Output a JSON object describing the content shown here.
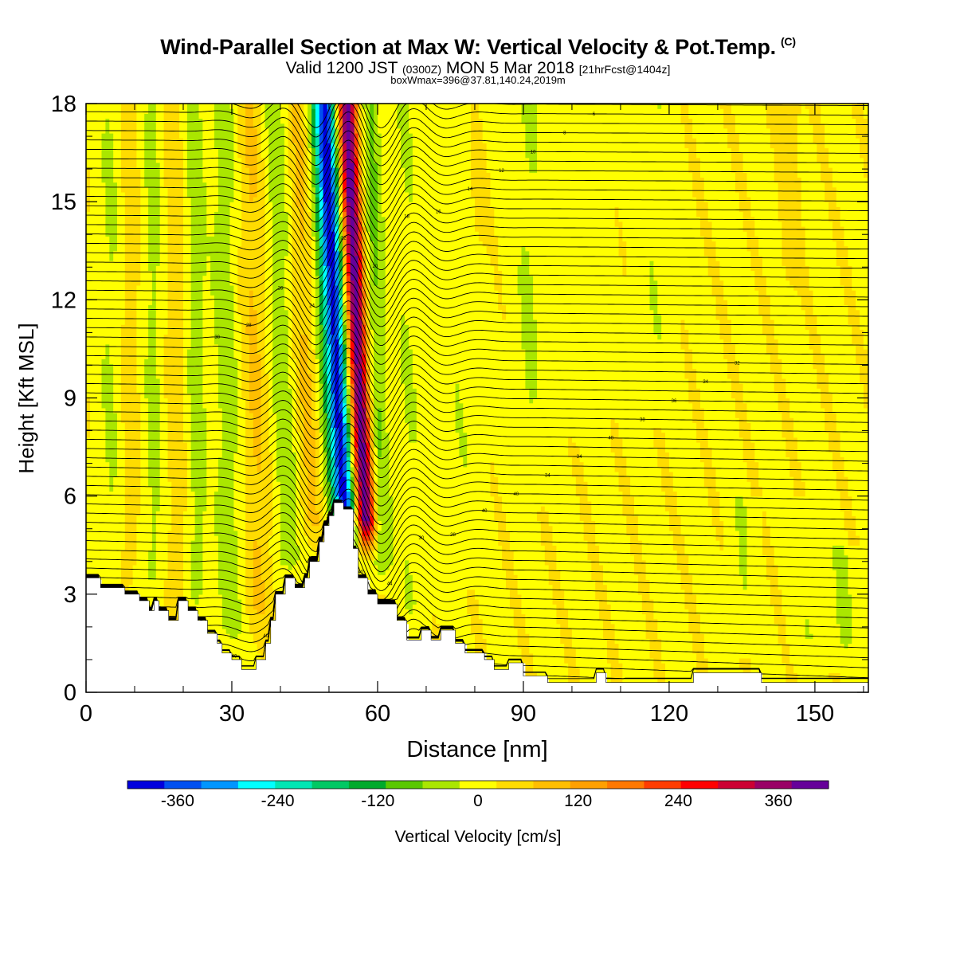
{
  "title": "Wind-Parallel Section at Max W: Vertical Velocity & Pot.Temp.",
  "title_mark": "(C)",
  "subtitle": {
    "part1": "Valid 1200 JST",
    "part2": "(0300Z)",
    "part3": "MON 5 Mar 2018",
    "part4": "[21hrFcst@1404z]"
  },
  "subtitle2": "boxWmax=396@37.81,140.24,2019m",
  "chart_data": {
    "type": "heatmap",
    "xlabel": "Distance [nm]",
    "ylabel": "Height [Kft MSL]",
    "xlim": [
      0,
      161
    ],
    "ylim": [
      0,
      18
    ],
    "x_ticks": [
      0,
      30,
      60,
      90,
      120,
      150
    ],
    "y_ticks": [
      0,
      3,
      6,
      9,
      12,
      15,
      18
    ],
    "colorbar": {
      "label": "Vertical Velocity [cm/s]",
      "ticks": [
        -360,
        -240,
        -120,
        0,
        120,
        240,
        360
      ],
      "range": [
        -420,
        420
      ],
      "colors": [
        "#0000dd",
        "#0050f0",
        "#0096ff",
        "#00ffff",
        "#00e6b4",
        "#00c864",
        "#00aa2c",
        "#5ac800",
        "#aae600",
        "#ffff00",
        "#ffdc00",
        "#ffbe00",
        "#ffa000",
        "#ff7800",
        "#ff3c00",
        "#ff0000",
        "#cc0033",
        "#990066",
        "#660099"
      ]
    },
    "terrain_kft": [
      {
        "x": 0,
        "h": 3.5
      },
      {
        "x": 3,
        "h": 3.5
      },
      {
        "x": 3,
        "h": 3.2
      },
      {
        "x": 8,
        "h": 3.2
      },
      {
        "x": 8,
        "h": 3.0
      },
      {
        "x": 11,
        "h": 3.0
      },
      {
        "x": 11,
        "h": 2.8
      },
      {
        "x": 13,
        "h": 2.8
      },
      {
        "x": 13,
        "h": 2.5
      },
      {
        "x": 14,
        "h": 2.5
      },
      {
        "x": 14,
        "h": 2.8
      },
      {
        "x": 15,
        "h": 2.8
      },
      {
        "x": 15,
        "h": 2.5
      },
      {
        "x": 17,
        "h": 2.5
      },
      {
        "x": 17,
        "h": 2.2
      },
      {
        "x": 19,
        "h": 2.2
      },
      {
        "x": 19,
        "h": 2.8
      },
      {
        "x": 21,
        "h": 2.8
      },
      {
        "x": 21,
        "h": 2.5
      },
      {
        "x": 23,
        "h": 2.5
      },
      {
        "x": 23,
        "h": 2.2
      },
      {
        "x": 25,
        "h": 2.2
      },
      {
        "x": 25,
        "h": 1.8
      },
      {
        "x": 27,
        "h": 1.8
      },
      {
        "x": 27,
        "h": 1.5
      },
      {
        "x": 28,
        "h": 1.5
      },
      {
        "x": 28,
        "h": 1.2
      },
      {
        "x": 30,
        "h": 1.2
      },
      {
        "x": 30,
        "h": 1.0
      },
      {
        "x": 32,
        "h": 1.0
      },
      {
        "x": 32,
        "h": 0.7
      },
      {
        "x": 35,
        "h": 0.7
      },
      {
        "x": 35,
        "h": 1.0
      },
      {
        "x": 37,
        "h": 1.0
      },
      {
        "x": 37,
        "h": 1.5
      },
      {
        "x": 38,
        "h": 1.5
      },
      {
        "x": 38,
        "h": 2.2
      },
      {
        "x": 39,
        "h": 2.2
      },
      {
        "x": 39,
        "h": 3.0
      },
      {
        "x": 41,
        "h": 3.0
      },
      {
        "x": 41,
        "h": 3.5
      },
      {
        "x": 43,
        "h": 3.5
      },
      {
        "x": 43,
        "h": 3.2
      },
      {
        "x": 45,
        "h": 3.2
      },
      {
        "x": 45,
        "h": 3.5
      },
      {
        "x": 46,
        "h": 3.5
      },
      {
        "x": 46,
        "h": 4.0
      },
      {
        "x": 48,
        "h": 4.0
      },
      {
        "x": 48,
        "h": 4.6
      },
      {
        "x": 49,
        "h": 4.6
      },
      {
        "x": 49,
        "h": 5.1
      },
      {
        "x": 50,
        "h": 5.1
      },
      {
        "x": 50,
        "h": 5.4
      },
      {
        "x": 51,
        "h": 5.4
      },
      {
        "x": 51,
        "h": 5.8
      },
      {
        "x": 53,
        "h": 5.8
      },
      {
        "x": 53,
        "h": 5.6
      },
      {
        "x": 55,
        "h": 5.6
      },
      {
        "x": 55,
        "h": 4.4
      },
      {
        "x": 56,
        "h": 4.4
      },
      {
        "x": 56,
        "h": 3.5
      },
      {
        "x": 58,
        "h": 3.5
      },
      {
        "x": 58,
        "h": 3.0
      },
      {
        "x": 60,
        "h": 3.0
      },
      {
        "x": 60,
        "h": 2.7
      },
      {
        "x": 64,
        "h": 2.7
      },
      {
        "x": 64,
        "h": 2.2
      },
      {
        "x": 66,
        "h": 2.2
      },
      {
        "x": 66,
        "h": 1.6
      },
      {
        "x": 69,
        "h": 1.6
      },
      {
        "x": 69,
        "h": 1.9
      },
      {
        "x": 71,
        "h": 1.9
      },
      {
        "x": 71,
        "h": 1.6
      },
      {
        "x": 73,
        "h": 1.6
      },
      {
        "x": 73,
        "h": 1.9
      },
      {
        "x": 76,
        "h": 1.9
      },
      {
        "x": 76,
        "h": 1.5
      },
      {
        "x": 78,
        "h": 1.5
      },
      {
        "x": 78,
        "h": 1.2
      },
      {
        "x": 82,
        "h": 1.2
      },
      {
        "x": 82,
        "h": 1.0
      },
      {
        "x": 84,
        "h": 1.0
      },
      {
        "x": 84,
        "h": 0.7
      },
      {
        "x": 87,
        "h": 0.7
      },
      {
        "x": 87,
        "h": 0.9
      },
      {
        "x": 90,
        "h": 0.9
      },
      {
        "x": 90,
        "h": 0.5
      },
      {
        "x": 95,
        "h": 0.5
      },
      {
        "x": 95,
        "h": 0.3
      },
      {
        "x": 105,
        "h": 0.3
      },
      {
        "x": 105,
        "h": 0.6
      },
      {
        "x": 107,
        "h": 0.6
      },
      {
        "x": 107,
        "h": 0.3
      },
      {
        "x": 125,
        "h": 0.3
      },
      {
        "x": 125,
        "h": 0.6
      },
      {
        "x": 139,
        "h": 0.6
      },
      {
        "x": 139,
        "h": 0.3
      },
      {
        "x": 161,
        "h": 0.3
      }
    ],
    "w_features": [
      {
        "x": 54,
        "w": -380,
        "w_nm": 2.2,
        "z0": 3.8,
        "z1": 18,
        "tilt": -0.42
      },
      {
        "x": 58,
        "w": 396,
        "w_nm": 2.0,
        "z0": 4.0,
        "z1": 18,
        "tilt": -0.38
      },
      {
        "x": 51,
        "w": -80,
        "w_nm": 2.5,
        "z0": 4.5,
        "z1": 18,
        "tilt": -0.35
      },
      {
        "x": 61,
        "w": -90,
        "w_nm": 2.0,
        "z0": 3.0,
        "z1": 18,
        "tilt": -0.2
      },
      {
        "x": 47,
        "w": 70,
        "w_nm": 3.0,
        "z0": 4.0,
        "z1": 18,
        "tilt": -0.3
      },
      {
        "x": 42,
        "w": -70,
        "w_nm": 3.0,
        "z0": 3.0,
        "z1": 18,
        "tilt": -0.25
      },
      {
        "x": 36,
        "w": 60,
        "w_nm": 3.0,
        "z0": 1.5,
        "z1": 18,
        "tilt": -0.18
      },
      {
        "x": 30,
        "w": -60,
        "w_nm": 3.0,
        "z0": 1.0,
        "z1": 18,
        "tilt": -0.12
      },
      {
        "x": 23,
        "w": -55,
        "w_nm": 2.2,
        "z0": 2.0,
        "z1": 18,
        "tilt": -0.05
      },
      {
        "x": 19,
        "w": 35,
        "w_nm": 2.0,
        "z0": 2.0,
        "z1": 18,
        "tilt": -0.05
      },
      {
        "x": 14,
        "w": -50,
        "w_nm": 2.0,
        "z0": 2.5,
        "z1": 18,
        "tilt": -0.03
      },
      {
        "x": 9,
        "w": 30,
        "w_nm": 2.0,
        "z0": 3.0,
        "z1": 18,
        "tilt": 0.0
      },
      {
        "x": 5,
        "w": -40,
        "w_nm": 2.5,
        "z0": 3.0,
        "z1": 18,
        "tilt": 0.0
      },
      {
        "x": 67,
        "w": -35,
        "w_nm": 3.0,
        "z0": 1.5,
        "z1": 18,
        "tilt": -0.1
      },
      {
        "x": 77,
        "w": -30,
        "w_nm": 4.0,
        "z0": 3.0,
        "z1": 18,
        "tilt": 0.0
      },
      {
        "x": 91,
        "w": -40,
        "w_nm": 3.0,
        "z0": 5.5,
        "z1": 18,
        "tilt": 0.0
      },
      {
        "x": 103,
        "w": -25,
        "w_nm": 4.0,
        "z0": 7.5,
        "z1": 18,
        "tilt": 0.0
      },
      {
        "x": 117,
        "w": -30,
        "w_nm": 3.5,
        "z0": 8.0,
        "z1": 18,
        "tilt": 0.0
      },
      {
        "x": 135,
        "w": -35,
        "w_nm": 2.5,
        "z0": 1.0,
        "z1": 6.0,
        "tilt": 0.0
      },
      {
        "x": 149,
        "w": -30,
        "w_nm": 3.0,
        "z0": 0.5,
        "z1": 6.0,
        "tilt": 0.0
      },
      {
        "x": 156,
        "w": -40,
        "w_nm": 3.0,
        "z0": 0.5,
        "z1": 4.5,
        "tilt": 0.0
      },
      {
        "x": 145,
        "w": 30,
        "w_nm": 2.0,
        "z0": 12.0,
        "z1": 18,
        "tilt": 0.0
      },
      {
        "x": 80,
        "w": 25,
        "w_nm": 3.0,
        "z0": 13.0,
        "z1": 18,
        "tilt": 0.0
      }
    ],
    "theta_contours": {
      "count": 62,
      "wave_center_x": 54,
      "labels": [
        "40",
        "40",
        "40",
        "40",
        "38",
        "40",
        "44",
        "30",
        "28",
        "40",
        "40",
        "34",
        "34",
        "40",
        "38",
        "36",
        "34",
        "32",
        "30",
        "28",
        "26",
        "24",
        "22",
        "20",
        "18",
        "16",
        "14",
        "12",
        "10",
        "8",
        "6",
        "9",
        "10",
        "8",
        "6",
        "30",
        "32",
        "28",
        "26",
        "24",
        "22",
        "20",
        "18",
        "16",
        "14",
        "12"
      ]
    }
  }
}
